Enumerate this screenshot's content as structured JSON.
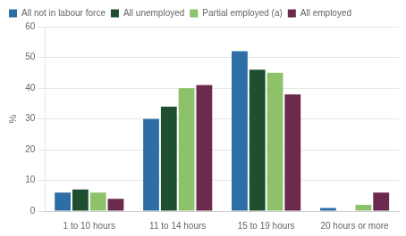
{
  "chart_data": {
    "type": "bar",
    "categories": [
      "1 to 10 hours",
      "11 to 14 hours",
      "15 to 19 hours",
      "20 hours or more"
    ],
    "series": [
      {
        "name": "All not in labour force",
        "color": "#2E6EA6",
        "values": [
          6,
          30,
          52,
          1
        ]
      },
      {
        "name": "All unemployed",
        "color": "#1F4E30",
        "values": [
          7,
          34,
          46,
          0
        ]
      },
      {
        "name": "Partial employed (a)",
        "color": "#8DC16A",
        "values": [
          6,
          40,
          45,
          2
        ]
      },
      {
        "name": "All employed",
        "color": "#6B2A4E",
        "values": [
          4,
          41,
          38,
          6
        ]
      }
    ],
    "ylabel": "%",
    "ylim": [
      0,
      60
    ],
    "yticks": [
      0,
      10,
      20,
      30,
      40,
      50,
      60
    ],
    "grid": true,
    "legend": "upper left"
  }
}
